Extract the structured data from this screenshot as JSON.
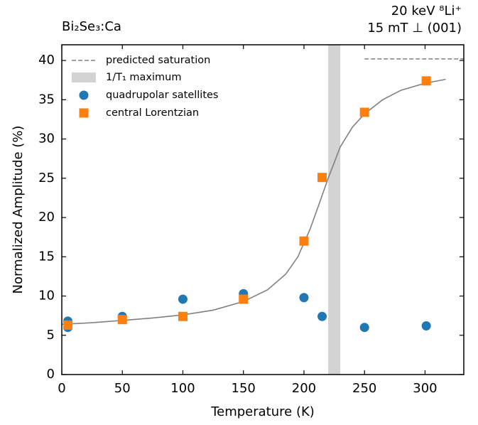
{
  "chart_data": {
    "type": "scatter",
    "title": "Bi₂Se₃:Ca",
    "annotations": [
      "20 keV ⁸Li⁺",
      "15 mT ⊥ (001)"
    ],
    "xlabel": "Temperature (K)",
    "ylabel": "Normalized Amplitude (%)",
    "xlim": [
      0,
      332
    ],
    "ylim": [
      0,
      42
    ],
    "xticks": [
      0,
      50,
      100,
      150,
      200,
      250,
      300
    ],
    "yticks": [
      0,
      5,
      10,
      15,
      20,
      25,
      30,
      35,
      40
    ],
    "legend": "upper left",
    "saturation": {
      "label": "predicted saturation",
      "value": 40.2,
      "x": [
        250,
        332
      ],
      "color": "#808080"
    },
    "band": {
      "label": "1/T₁ maximum",
      "xlim": [
        220,
        230
      ],
      "color": "#d3d3d3"
    },
    "series": [
      {
        "name": "quadrupolar satellites",
        "color": "#1f77b4",
        "marker": "circle",
        "x": [
          5,
          5,
          50,
          100,
          150,
          200,
          215,
          250,
          301
        ],
        "values": [
          6.8,
          6.0,
          7.4,
          9.6,
          10.3,
          9.8,
          7.4,
          6.0,
          6.2
        ]
      },
      {
        "name": "central Lorentzian",
        "color": "#ff7f0e",
        "marker": "square",
        "x": [
          5,
          50,
          100,
          150,
          200,
          215,
          250,
          301
        ],
        "values": [
          6.3,
          7.0,
          7.4,
          9.6,
          17.0,
          25.1,
          33.4,
          37.4
        ]
      }
    ],
    "fit": {
      "color": "#808080",
      "x": [
        0,
        25,
        50,
        75,
        100,
        125,
        150,
        170,
        185,
        195,
        205,
        212,
        220,
        230,
        240,
        250,
        265,
        280,
        300,
        317
      ],
      "values": [
        6.4,
        6.6,
        6.9,
        7.2,
        7.6,
        8.2,
        9.3,
        10.8,
        12.8,
        15.0,
        18.5,
        21.5,
        25.0,
        29.0,
        31.5,
        33.2,
        35.0,
        36.2,
        37.1,
        37.6
      ]
    }
  }
}
